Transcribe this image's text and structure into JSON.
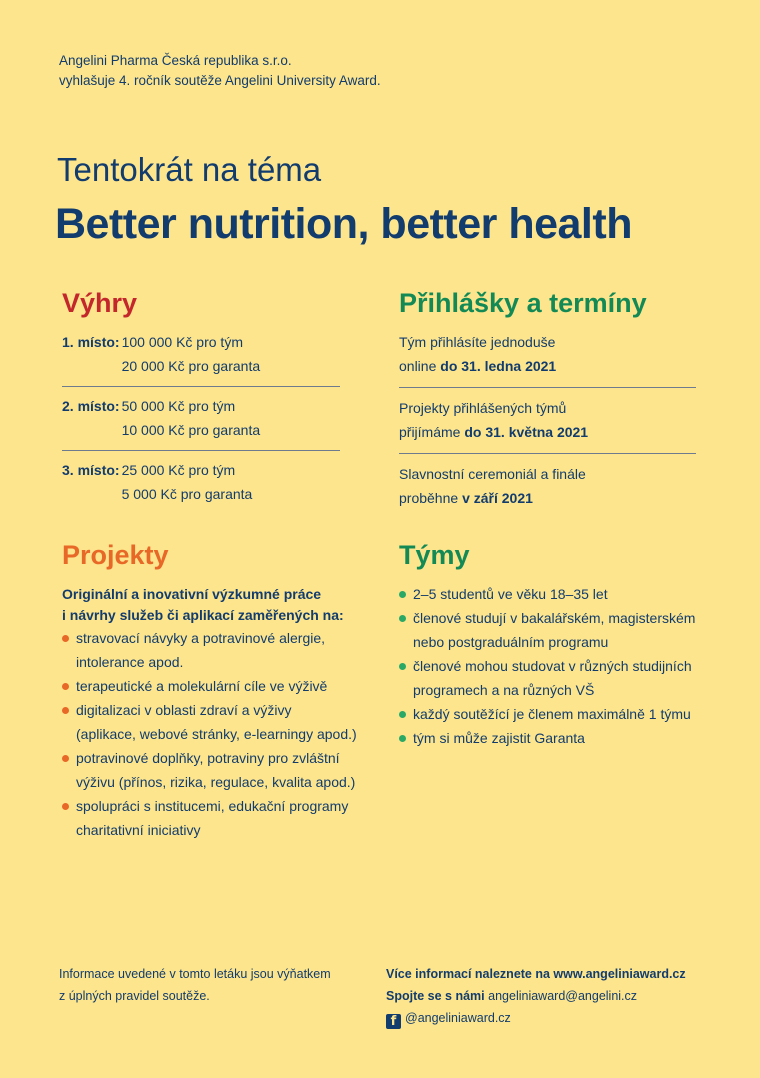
{
  "intro": {
    "line1": "Angelini Pharma Česká republika s.r.o.",
    "line2": "vyhlašuje 4. ročník soutěže Angelini University Award."
  },
  "header": {
    "subtitle": "Tentokrát na téma",
    "title": "Better nutrition, better health"
  },
  "prizes": {
    "heading": "Výhry",
    "items": [
      {
        "place": "1. místo:",
        "team": "100 000 Kč pro tým",
        "guarantor": "20 000 Kč pro garanta"
      },
      {
        "place": "2. místo:",
        "team": "50 000 Kč pro tým",
        "guarantor": "10 000 Kč pro garanta"
      },
      {
        "place": "3. místo:",
        "team": "25 000 Kč pro tým",
        "guarantor": "5 000 Kč pro garanta"
      }
    ]
  },
  "registration": {
    "heading": "Přihlášky a termíny",
    "items": [
      {
        "line1": "Tým přihlásíte jednoduše",
        "line2_pre": "online ",
        "line2_bold": "do 31. ledna 2021"
      },
      {
        "line1": "Projekty přihlášených týmů",
        "line2_pre": "přijímáme ",
        "line2_bold": "do 31. května 2021"
      },
      {
        "line1": "Slavnostní ceremoniál a finále",
        "line2_pre": "proběhne ",
        "line2_bold": "v září 2021"
      }
    ]
  },
  "projects": {
    "heading": "Projekty",
    "lead1": "Originální a inovativní výzkumné práce",
    "lead2": "i návrhy služeb či aplikací zaměřených na:",
    "items": [
      {
        "line1": "stravovací návyky a potravinové alergie,",
        "line2": "intolerance apod."
      },
      {
        "line1": "terapeutické a molekulární cíle ve výživě",
        "line2": ""
      },
      {
        "line1": "digitalizaci v oblasti zdraví a výživy",
        "line2": "(aplikace, webové stránky, e-learningy apod.)"
      },
      {
        "line1": "potravinové doplňky, potraviny pro zvláštní",
        "line2": "výživu (přínos, rizika, regulace, kvalita apod.)"
      },
      {
        "line1": "spolupráci s institucemi, edukační programy",
        "line2": "charitativní iniciativy"
      }
    ]
  },
  "teams": {
    "heading": "Týmy",
    "items": [
      {
        "line1": "2–5 studentů ve věku 18–35 let",
        "line2": ""
      },
      {
        "line1": "členové studují v bakalářském, magisterském",
        "line2": "nebo postgraduálním programu"
      },
      {
        "line1": "členové mohou studovat v různých studijních",
        "line2": "programech a na různých VŠ"
      },
      {
        "line1": "každý soutěžící je členem maximálně 1 týmu",
        "line2": ""
      },
      {
        "line1": "tým si může zajistit Garanta",
        "line2": ""
      }
    ]
  },
  "footer": {
    "note1": "Informace uvedené v tomto letáku jsou výňatkem",
    "note2": "z úplných pravidel soutěže.",
    "more_label": "Více informací naleznete na www.angeliniaward.cz",
    "contact_label": "Spojte se s námi",
    "contact_email": "angeliniaward@angelini.cz",
    "facebook_icon": "facebook-icon",
    "facebook_handle": "@angeliniaward.cz"
  },
  "colors": {
    "background": "#fde58d",
    "navy": "#123c6e",
    "red": "#c3272b",
    "green": "#138a56",
    "orange": "#e86828"
  }
}
